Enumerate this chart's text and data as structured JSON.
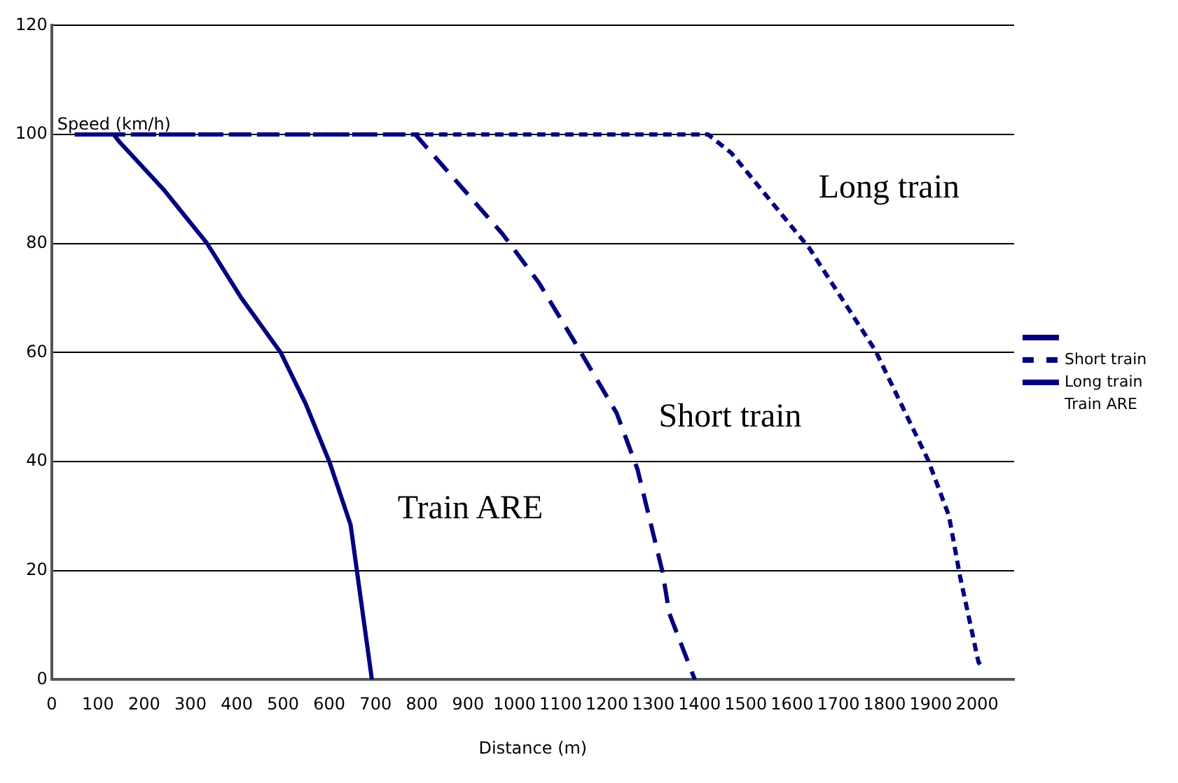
{
  "chart_data": {
    "type": "line",
    "xlabel": "Distance (m)",
    "ylabel": "Speed (km/h)",
    "xlim": [
      0,
      2080
    ],
    "xticks": [
      0,
      100,
      200,
      300,
      400,
      500,
      600,
      700,
      800,
      900,
      1000,
      1100,
      1200,
      1300,
      1400,
      1500,
      1600,
      1700,
      1800,
      1900,
      2000
    ],
    "ylim": [
      0,
      120
    ],
    "yticks": [
      0,
      20,
      40,
      60,
      80,
      100,
      120
    ],
    "grid": "y",
    "legend": "right",
    "marker": "none",
    "series": [
      {
        "color": "#000080",
        "line_style": "dashed",
        "x": [
          50,
          786,
          974,
          1053,
          1132,
          1221,
          1266,
          1320,
          1335,
          1390
        ],
        "values": [
          100,
          100,
          81.8,
          72.8,
          61.7,
          48.9,
          38.6,
          19.8,
          12.1,
          0
        ]
      },
      {
        "name": "Short train",
        "color": "#000080",
        "line_style": "dotted",
        "x": [
          50,
          1419,
          1469,
          1637,
          1780,
          1894,
          1939,
          1963,
          2003,
          2012
        ],
        "values": [
          100,
          100,
          96.6,
          79.2,
          60.4,
          40.3,
          30.1,
          19,
          3.2,
          2.3
        ]
      },
      {
        "name": "Long train",
        "color": "#000080",
        "line_style": "solid",
        "x": [
          50,
          134,
          146,
          242,
          336,
          410,
          495,
          549,
          600,
          646,
          692
        ],
        "values": [
          100,
          100,
          98.7,
          89.9,
          80,
          70,
          60,
          50.6,
          40,
          28.4,
          0
        ]
      }
    ],
    "annotations": [
      "Train ARE",
      "Short train",
      "Long train",
      "Train ARE"
    ]
  }
}
